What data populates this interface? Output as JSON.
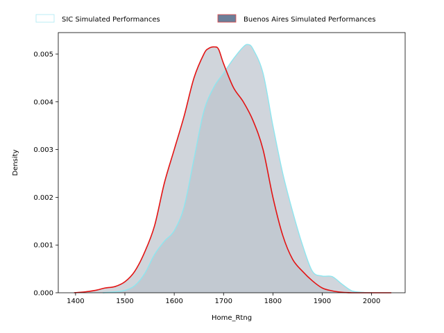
{
  "chart_data": {
    "type": "area",
    "xlabel": "Home_Rtng",
    "ylabel": "Density",
    "xlim": [
      1365,
      2068
    ],
    "ylim": [
      0,
      0.00545
    ],
    "xticks": [
      1400,
      1500,
      1600,
      1700,
      1800,
      1900,
      2000
    ],
    "xtick_labels": [
      "1400",
      "1500",
      "1600",
      "1700",
      "1800",
      "1900",
      "2000"
    ],
    "yticks": [
      0,
      0.001,
      0.002,
      0.003,
      0.004,
      0.005
    ],
    "ytick_labels": [
      "0.000",
      "0.001",
      "0.002",
      "0.003",
      "0.004",
      "0.005"
    ],
    "grid": false,
    "legend_position": "top-center-outside",
    "legend": [
      {
        "label": "SIC Simulated Performances",
        "edge": "#aaeaf2",
        "face": "#ffffff"
      },
      {
        "label": "Buenos Aires Simulated Performances",
        "edge": "#e84848",
        "face": "#6b7f99"
      }
    ],
    "series": [
      {
        "name": "SIC Simulated Performances",
        "line_color": "#8de6ef",
        "fill_color": "#c8ced6",
        "fill_opacity": 0.85,
        "x": [
          1455,
          1480,
          1500,
          1520,
          1540,
          1560,
          1580,
          1600,
          1620,
          1640,
          1660,
          1680,
          1700,
          1720,
          1740,
          1750,
          1760,
          1780,
          1800,
          1820,
          1840,
          1860,
          1880,
          1900,
          1920,
          1940,
          1960,
          1980,
          2000
        ],
        "y": [
          0.0,
          2e-05,
          5e-05,
          0.00015,
          0.0004,
          0.0008,
          0.00108,
          0.0013,
          0.0018,
          0.0028,
          0.0038,
          0.0043,
          0.0046,
          0.0049,
          0.00515,
          0.0052,
          0.0051,
          0.0046,
          0.0035,
          0.0025,
          0.0017,
          0.001,
          0.00045,
          0.00035,
          0.00034,
          0.00018,
          4e-05,
          1e-05,
          0.0
        ]
      },
      {
        "name": "Buenos Aires Simulated Performances",
        "line_color": "#e31212",
        "fill_color": "#bcc3cc",
        "fill_opacity": 0.7,
        "x": [
          1397,
          1420,
          1440,
          1460,
          1480,
          1500,
          1520,
          1540,
          1560,
          1580,
          1600,
          1620,
          1640,
          1660,
          1670,
          1682,
          1690,
          1700,
          1720,
          1740,
          1760,
          1780,
          1800,
          1820,
          1840,
          1860,
          1880,
          1900,
          1920,
          1940,
          1960,
          1980,
          2000,
          2040
        ],
        "y": [
          0.0,
          2e-05,
          5e-05,
          0.0001,
          0.00013,
          0.00023,
          0.00045,
          0.00085,
          0.0014,
          0.0023,
          0.003,
          0.0037,
          0.0045,
          0.005,
          0.00512,
          0.00515,
          0.0051,
          0.0048,
          0.0043,
          0.004,
          0.0036,
          0.003,
          0.002,
          0.0012,
          0.0007,
          0.00045,
          0.00025,
          0.0001,
          4e-05,
          1e-05,
          0.0,
          0.0,
          0.0,
          0.0
        ]
      }
    ]
  }
}
